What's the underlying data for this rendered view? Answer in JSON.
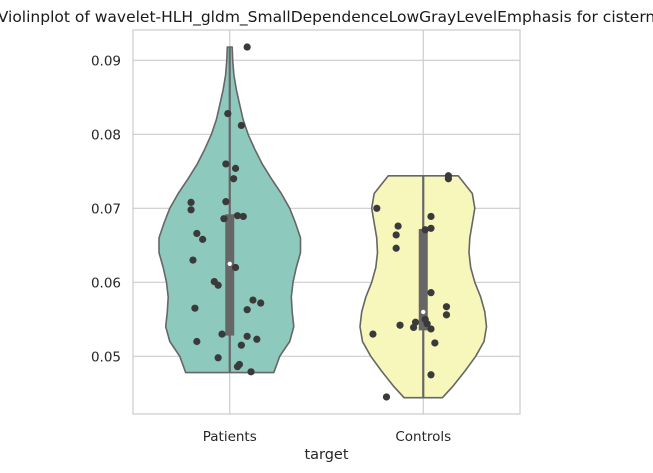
{
  "chart_data": {
    "type": "violin",
    "title": "Violinplot of wavelet-HLH_gldm_SmallDependenceLowGrayLevelEmphasis for cistern",
    "xlabel": "target",
    "ylabel": "",
    "ylim": [
      0.0422,
      0.0941
    ],
    "yticks": [
      "0.05",
      "0.06",
      "0.07",
      "0.08",
      "0.09"
    ],
    "grid": true,
    "categories": [
      "Patients",
      "Controls"
    ],
    "series": [
      {
        "category": "Patients",
        "color": "#8dc9bd",
        "min": 0.0478,
        "max": 0.0918,
        "q1": 0.0528,
        "median": 0.0625,
        "q3": 0.0692,
        "density": [
          [
            0.0478,
            0.53
          ],
          [
            0.05,
            0.6
          ],
          [
            0.052,
            0.72
          ],
          [
            0.054,
            0.77
          ],
          [
            0.056,
            0.75
          ],
          [
            0.058,
            0.74
          ],
          [
            0.06,
            0.76
          ],
          [
            0.062,
            0.8
          ],
          [
            0.064,
            0.85
          ],
          [
            0.066,
            0.85
          ],
          [
            0.068,
            0.79
          ],
          [
            0.07,
            0.72
          ],
          [
            0.072,
            0.62
          ],
          [
            0.074,
            0.5
          ],
          [
            0.076,
            0.39
          ],
          [
            0.078,
            0.3
          ],
          [
            0.08,
            0.22
          ],
          [
            0.082,
            0.16
          ],
          [
            0.084,
            0.12
          ],
          [
            0.086,
            0.08
          ],
          [
            0.088,
            0.05
          ],
          [
            0.09,
            0.035
          ],
          [
            0.0918,
            0.03
          ]
        ],
        "points": [
          {
            "value": 0.0918,
            "jitter": 0.09
          },
          {
            "value": 0.0828,
            "jitter": -0.01
          },
          {
            "value": 0.0812,
            "jitter": 0.06
          },
          {
            "value": 0.076,
            "jitter": -0.02
          },
          {
            "value": 0.0754,
            "jitter": 0.03
          },
          {
            "value": 0.074,
            "jitter": 0.02
          },
          {
            "value": 0.0709,
            "jitter": -0.02
          },
          {
            "value": 0.0708,
            "jitter": -0.2
          },
          {
            "value": 0.0698,
            "jitter": -0.2
          },
          {
            "value": 0.069,
            "jitter": 0.04
          },
          {
            "value": 0.0689,
            "jitter": 0.07
          },
          {
            "value": 0.0686,
            "jitter": -0.03
          },
          {
            "value": 0.0666,
            "jitter": -0.17
          },
          {
            "value": 0.0658,
            "jitter": -0.14
          },
          {
            "value": 0.063,
            "jitter": -0.19
          },
          {
            "value": 0.062,
            "jitter": 0.03
          },
          {
            "value": 0.0601,
            "jitter": -0.08
          },
          {
            "value": 0.0596,
            "jitter": -0.06
          },
          {
            "value": 0.0576,
            "jitter": 0.12
          },
          {
            "value": 0.0572,
            "jitter": 0.16
          },
          {
            "value": 0.0565,
            "jitter": -0.18
          },
          {
            "value": 0.0563,
            "jitter": 0.09
          },
          {
            "value": 0.053,
            "jitter": -0.04
          },
          {
            "value": 0.0527,
            "jitter": 0.09
          },
          {
            "value": 0.0523,
            "jitter": 0.14
          },
          {
            "value": 0.052,
            "jitter": -0.17
          },
          {
            "value": 0.0515,
            "jitter": 0.06
          },
          {
            "value": 0.0498,
            "jitter": -0.06
          },
          {
            "value": 0.0489,
            "jitter": 0.05
          },
          {
            "value": 0.0486,
            "jitter": 0.04
          },
          {
            "value": 0.0479,
            "jitter": 0.11
          }
        ]
      },
      {
        "category": "Controls",
        "color": "#f7f6bb",
        "min": 0.0444,
        "max": 0.0744,
        "q1": 0.0535,
        "median": 0.056,
        "q3": 0.0672,
        "density": [
          [
            0.0444,
            0.23
          ],
          [
            0.046,
            0.36
          ],
          [
            0.048,
            0.5
          ],
          [
            0.05,
            0.63
          ],
          [
            0.052,
            0.73
          ],
          [
            0.054,
            0.76
          ],
          [
            0.056,
            0.74
          ],
          [
            0.058,
            0.69
          ],
          [
            0.06,
            0.62
          ],
          [
            0.062,
            0.57
          ],
          [
            0.064,
            0.55
          ],
          [
            0.066,
            0.56
          ],
          [
            0.068,
            0.59
          ],
          [
            0.07,
            0.62
          ],
          [
            0.072,
            0.59
          ],
          [
            0.0744,
            0.42
          ]
        ],
        "points": [
          {
            "value": 0.0744,
            "jitter": 0.13
          },
          {
            "value": 0.074,
            "jitter": 0.13
          },
          {
            "value": 0.07,
            "jitter": -0.24
          },
          {
            "value": 0.0689,
            "jitter": 0.04
          },
          {
            "value": 0.0676,
            "jitter": -0.13
          },
          {
            "value": 0.0673,
            "jitter": 0.04
          },
          {
            "value": 0.0671,
            "jitter": 0.01
          },
          {
            "value": 0.0664,
            "jitter": -0.14
          },
          {
            "value": 0.0646,
            "jitter": -0.14
          },
          {
            "value": 0.0586,
            "jitter": 0.04
          },
          {
            "value": 0.0567,
            "jitter": 0.12
          },
          {
            "value": 0.0556,
            "jitter": 0.12
          },
          {
            "value": 0.055,
            "jitter": 0.01
          },
          {
            "value": 0.0546,
            "jitter": -0.04
          },
          {
            "value": 0.0544,
            "jitter": 0.02
          },
          {
            "value": 0.0542,
            "jitter": -0.12
          },
          {
            "value": 0.0539,
            "jitter": -0.05
          },
          {
            "value": 0.0537,
            "jitter": 0.04
          },
          {
            "value": 0.053,
            "jitter": -0.26
          },
          {
            "value": 0.0518,
            "jitter": 0.06
          },
          {
            "value": 0.0475,
            "jitter": 0.04
          },
          {
            "value": 0.0445,
            "jitter": -0.19
          }
        ]
      }
    ]
  }
}
